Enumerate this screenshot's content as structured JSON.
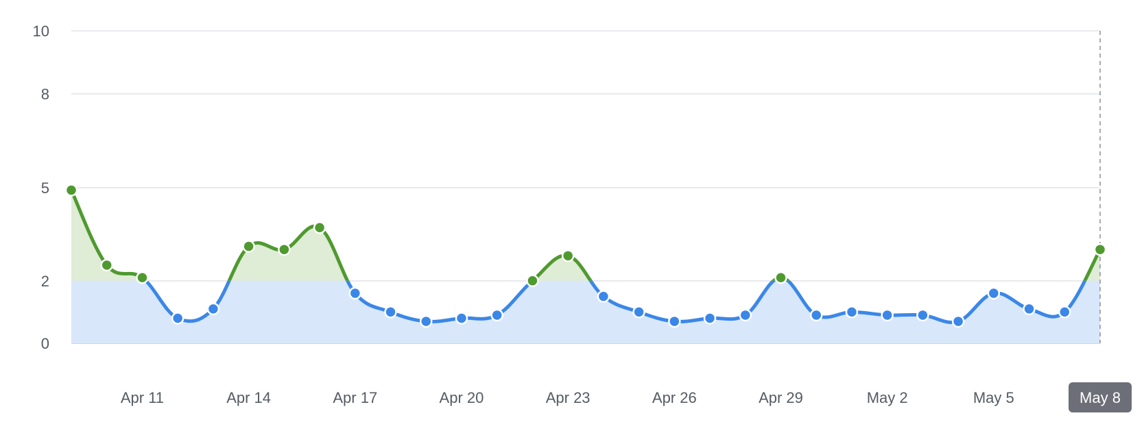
{
  "chart_data": {
    "type": "area",
    "title": "",
    "xlabel": "",
    "ylabel": "",
    "threshold": 2,
    "ylim": [
      0,
      10
    ],
    "y_ticks": [
      "0",
      "2",
      "5",
      "8",
      "10"
    ],
    "grid": true,
    "x": [
      "Apr 9",
      "Apr 10",
      "Apr 11",
      "Apr 12",
      "Apr 13",
      "Apr 14",
      "Apr 15",
      "Apr 16",
      "Apr 17",
      "Apr 18",
      "Apr 19",
      "Apr 20",
      "Apr 21",
      "Apr 22",
      "Apr 23",
      "Apr 24",
      "Apr 25",
      "Apr 26",
      "Apr 27",
      "Apr 28",
      "Apr 29",
      "Apr 30",
      "May 1",
      "May 2",
      "May 3",
      "May 4",
      "May 5",
      "May 6",
      "May 7",
      "May 8"
    ],
    "x_tick_labels": [
      "Apr 11",
      "Apr 14",
      "Apr 17",
      "Apr 20",
      "Apr 23",
      "Apr 26",
      "Apr 29",
      "May 2",
      "May 5",
      "May 8"
    ],
    "highlighted_label": "May 8",
    "series": [
      {
        "values": [
          4.9,
          2.5,
          2.1,
          0.8,
          1.1,
          3.1,
          3.0,
          3.7,
          1.6,
          1.0,
          0.7,
          0.8,
          0.9,
          2.0,
          2.8,
          1.5,
          1.0,
          0.7,
          0.8,
          0.9,
          2.1,
          0.9,
          1.0,
          0.9,
          0.9,
          0.7,
          1.6,
          1.1,
          1.0,
          3.0
        ]
      }
    ],
    "colors": {
      "below": "#3b87e8",
      "above": "#4f9a2f",
      "below_fill": "#d9e7fb",
      "above_fill": "#dfecd6",
      "highlight_badge": "#6c6f78"
    }
  }
}
